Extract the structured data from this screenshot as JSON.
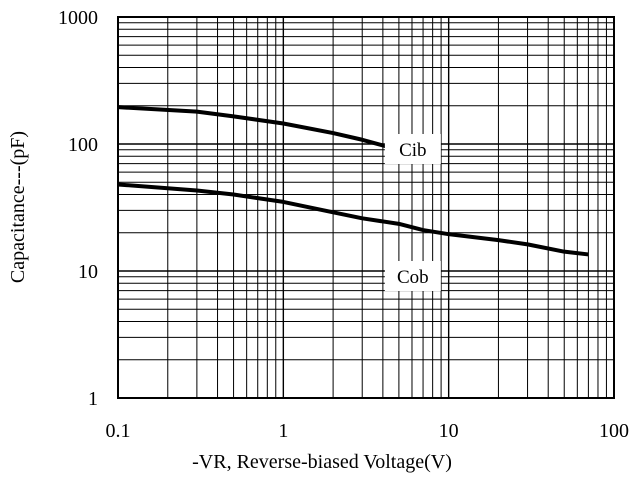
{
  "chart_data": {
    "type": "line",
    "xscale": "log",
    "yscale": "log",
    "xlim": [
      0.1,
      100
    ],
    "ylim": [
      1,
      1000
    ],
    "xlabel": "-VR, Reverse-biased Voltage(V)",
    "ylabel": "Capacitance---(pF)",
    "x_ticks": [
      "0.1",
      "1",
      "10",
      "100"
    ],
    "y_ticks": [
      "1",
      "10",
      "100",
      "1000"
    ],
    "grid": true,
    "legend": "none",
    "line_color": "#000000",
    "series": [
      {
        "name": "Cib",
        "points": [
          [
            0.1,
            195
          ],
          [
            0.3,
            180
          ],
          [
            0.5,
            165
          ],
          [
            1,
            145
          ],
          [
            2,
            122
          ],
          [
            3,
            108
          ],
          [
            5,
            90
          ],
          [
            7,
            82
          ]
        ]
      },
      {
        "name": "Cob",
        "points": [
          [
            0.1,
            48
          ],
          [
            0.3,
            43
          ],
          [
            0.5,
            40
          ],
          [
            1,
            35
          ],
          [
            2,
            29
          ],
          [
            3,
            26
          ],
          [
            5,
            23.5
          ],
          [
            7,
            21
          ],
          [
            10,
            19.5
          ],
          [
            20,
            17.5
          ],
          [
            30,
            16.2
          ],
          [
            50,
            14.2
          ],
          [
            70,
            13.5
          ]
        ]
      }
    ]
  }
}
